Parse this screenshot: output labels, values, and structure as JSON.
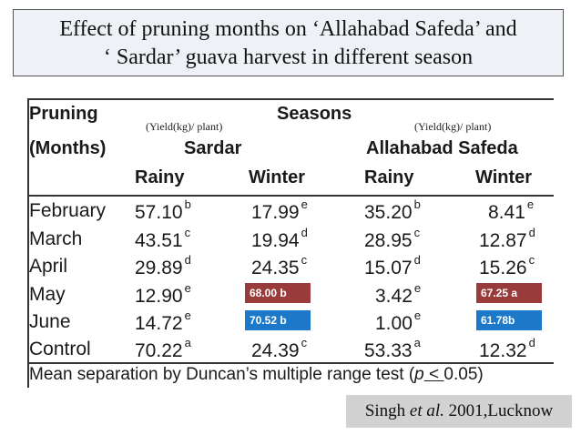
{
  "title": {
    "line1": "Effect of pruning months on ‘Allahabad Safeda’ and",
    "line2": "‘ Sardar’ guava harvest in different season"
  },
  "table": {
    "col_pruning_1": "Pruning",
    "col_pruning_2": "(Months)",
    "col_seasons": "Seasons",
    "unit_left": "(Yield(kg)/ plant)",
    "unit_right": "(Yield(kg)/ plant)",
    "variety_1": "Sardar",
    "variety_2": "Allahabad Safeda",
    "season_rainy_1": "Rainy",
    "season_winter_1": "Winter",
    "season_rainy_2": "Rainy",
    "season_winter_2": "Winter",
    "rows": [
      {
        "month": "February",
        "sr": "57.10",
        "srl": "b",
        "sw": "17.99",
        "swl": "e",
        "ar": "35.20",
        "arl": "b",
        "aw": "8.41",
        "awl": "e"
      },
      {
        "month": "March",
        "sr": "43.51",
        "srl": "c",
        "sw": "19.94",
        "swl": "d",
        "ar": "28.95",
        "arl": "c",
        "aw": "12.87",
        "awl": "d"
      },
      {
        "month": "April",
        "sr": "29.89",
        "srl": "d",
        "sw": "24.35",
        "swl": "c",
        "ar": "15.07",
        "arl": "d",
        "aw": "15.26",
        "awl": "c"
      },
      {
        "month": "May",
        "sr": "12.90",
        "srl": "e",
        "sw": "",
        "swl": "",
        "ar": "3.42",
        "arl": "e",
        "aw": "",
        "awl": ""
      },
      {
        "month": "June",
        "sr": "14.72",
        "srl": "e",
        "sw": "",
        "swl": "",
        "ar": "1.00",
        "arl": "e",
        "aw": "",
        "awl": ""
      },
      {
        "month": "Control",
        "sr": "70.22",
        "srl": "a",
        "sw": "24.39",
        "swl": "c",
        "ar": "53.33",
        "arl": "a",
        "aw": "12.32",
        "awl": "d"
      }
    ],
    "overlays": {
      "may_sardar_winter": "68.00 b",
      "june_sardar_winter": "70.52 b",
      "may_safeda_winter": "67.25 a",
      "june_safeda_winter": "61.78b"
    },
    "footnote_pre": "Mean separation by Duncan’s multiple range test (",
    "footnote_p": "p",
    "footnote_lt": " < ",
    "footnote_val": "0.05)"
  },
  "citation": {
    "author": "Singh",
    "etal": "et al.",
    "rest": " 2001,Lucknow"
  },
  "colors": {
    "red_tag": "#9a3b3b",
    "blue_tag": "#1c78c9",
    "title_bg": "#eef2f6",
    "citation_bg": "#d2d2d2"
  }
}
